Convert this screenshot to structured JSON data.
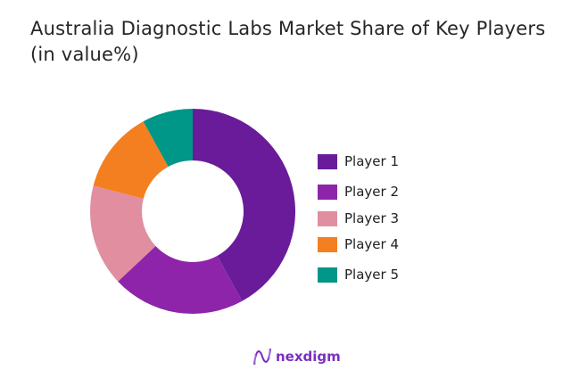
{
  "chart_data": {
    "type": "pie",
    "donut": true,
    "title": "Australia Diagnostic Labs Market Share of Key Players (in value%)",
    "title_lines": [
      "Australia Diagnostic Labs Market Share of Key Players",
      "(in value%)"
    ],
    "categories": [
      "Player 1",
      "Player 2",
      "Player 3",
      "Player 4",
      "Player 5"
    ],
    "values": [
      42,
      21,
      16,
      13,
      8
    ],
    "colors": [
      "#6a1b9a",
      "#8e24aa",
      "#e08ea0",
      "#f47f20",
      "#009688"
    ],
    "legend_position": "right"
  },
  "logo": {
    "text": "nexdigm"
  }
}
